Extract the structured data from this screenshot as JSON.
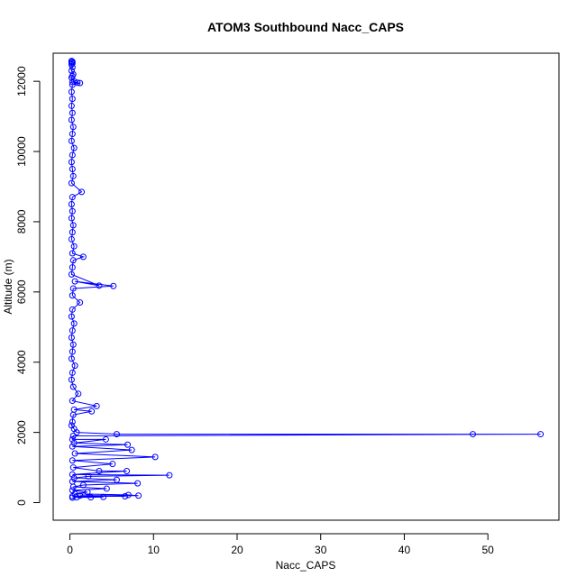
{
  "chart_data": {
    "type": "line",
    "title": "ATOM3 Southbound Nacc_CAPS",
    "xlabel": "Nacc_CAPS",
    "ylabel": "Altitude (m)",
    "xlim": [
      -2,
      58.5
    ],
    "ylim": [
      -500,
      12800
    ],
    "xticks": [
      0,
      10,
      20,
      30,
      40,
      50
    ],
    "yticks": [
      0,
      2000,
      4000,
      6000,
      8000,
      10000,
      12000
    ],
    "series_color": "#0000ff",
    "marker": "open-circle",
    "grid": false,
    "legend": "none",
    "series": [
      {
        "values": [
          [
            0.2,
            12580
          ],
          [
            0.3,
            12560
          ],
          [
            0.2,
            12540
          ],
          [
            0.3,
            12510
          ],
          [
            0.2,
            12480
          ],
          [
            0.3,
            12400
          ],
          [
            0.2,
            12300
          ],
          [
            0.4,
            12200
          ],
          [
            0.3,
            12150
          ],
          [
            0.2,
            12100
          ],
          [
            0.5,
            12000
          ],
          [
            0.3,
            11980
          ],
          [
            0.9,
            11960
          ],
          [
            1.2,
            11950
          ],
          [
            0.3,
            11900
          ],
          [
            0.2,
            11700
          ],
          [
            0.3,
            11500
          ],
          [
            0.2,
            11300
          ],
          [
            0.3,
            11100
          ],
          [
            0.2,
            10900
          ],
          [
            0.4,
            10700
          ],
          [
            0.3,
            10500
          ],
          [
            0.2,
            10300
          ],
          [
            0.5,
            10100
          ],
          [
            0.3,
            9900
          ],
          [
            0.2,
            9700
          ],
          [
            0.3,
            9500
          ],
          [
            0.4,
            9300
          ],
          [
            0.2,
            9100
          ],
          [
            1.4,
            8850
          ],
          [
            0.3,
            8700
          ],
          [
            0.2,
            8500
          ],
          [
            0.3,
            8300
          ],
          [
            0.2,
            8100
          ],
          [
            0.4,
            7900
          ],
          [
            0.3,
            7700
          ],
          [
            0.2,
            7500
          ],
          [
            0.5,
            7300
          ],
          [
            0.3,
            7100
          ],
          [
            1.6,
            7000
          ],
          [
            0.4,
            6900
          ],
          [
            0.3,
            6700
          ],
          [
            0.2,
            6500
          ],
          [
            3.5,
            6180
          ],
          [
            0.6,
            6300
          ],
          [
            5.2,
            6170
          ],
          [
            0.4,
            6100
          ],
          [
            0.3,
            5900
          ],
          [
            1.2,
            5700
          ],
          [
            0.3,
            5500
          ],
          [
            0.2,
            5300
          ],
          [
            0.5,
            5100
          ],
          [
            0.3,
            4900
          ],
          [
            0.2,
            4700
          ],
          [
            0.4,
            4500
          ],
          [
            0.3,
            4300
          ],
          [
            0.2,
            4100
          ],
          [
            0.6,
            3900
          ],
          [
            0.3,
            3700
          ],
          [
            0.2,
            3500
          ],
          [
            0.4,
            3300
          ],
          [
            1.0,
            3100
          ],
          [
            0.3,
            2900
          ],
          [
            3.2,
            2750
          ],
          [
            0.5,
            2650
          ],
          [
            2.6,
            2600
          ],
          [
            0.4,
            2500
          ],
          [
            0.3,
            2300
          ],
          [
            0.2,
            2200
          ],
          [
            0.5,
            2100
          ],
          [
            0.8,
            2000
          ],
          [
            5.6,
            1950
          ],
          [
            48.2,
            1950
          ],
          [
            56.3,
            1950
          ],
          [
            0.4,
            1900
          ],
          [
            0.3,
            1800
          ],
          [
            4.3,
            1800
          ],
          [
            0.5,
            1700
          ],
          [
            6.9,
            1650
          ],
          [
            0.3,
            1600
          ],
          [
            7.4,
            1500
          ],
          [
            0.6,
            1400
          ],
          [
            10.2,
            1300
          ],
          [
            0.3,
            1200
          ],
          [
            5.1,
            1100
          ],
          [
            0.4,
            1000
          ],
          [
            3.5,
            900
          ],
          [
            6.8,
            900
          ],
          [
            0.3,
            800
          ],
          [
            11.9,
            780
          ],
          [
            2.2,
            750
          ],
          [
            0.5,
            700
          ],
          [
            5.6,
            650
          ],
          [
            0.3,
            600
          ],
          [
            8.1,
            550
          ],
          [
            1.6,
            500
          ],
          [
            0.4,
            450
          ],
          [
            4.4,
            400
          ],
          [
            0.3,
            350
          ],
          [
            2.1,
            300
          ],
          [
            0.6,
            250
          ],
          [
            7.0,
            220
          ],
          [
            8.2,
            200
          ],
          [
            1.2,
            200
          ],
          [
            6.6,
            180
          ],
          [
            0.3,
            180
          ],
          [
            4.0,
            160
          ],
          [
            2.5,
            150
          ],
          [
            0.8,
            150
          ],
          [
            0.3,
            140
          ]
        ]
      }
    ]
  }
}
